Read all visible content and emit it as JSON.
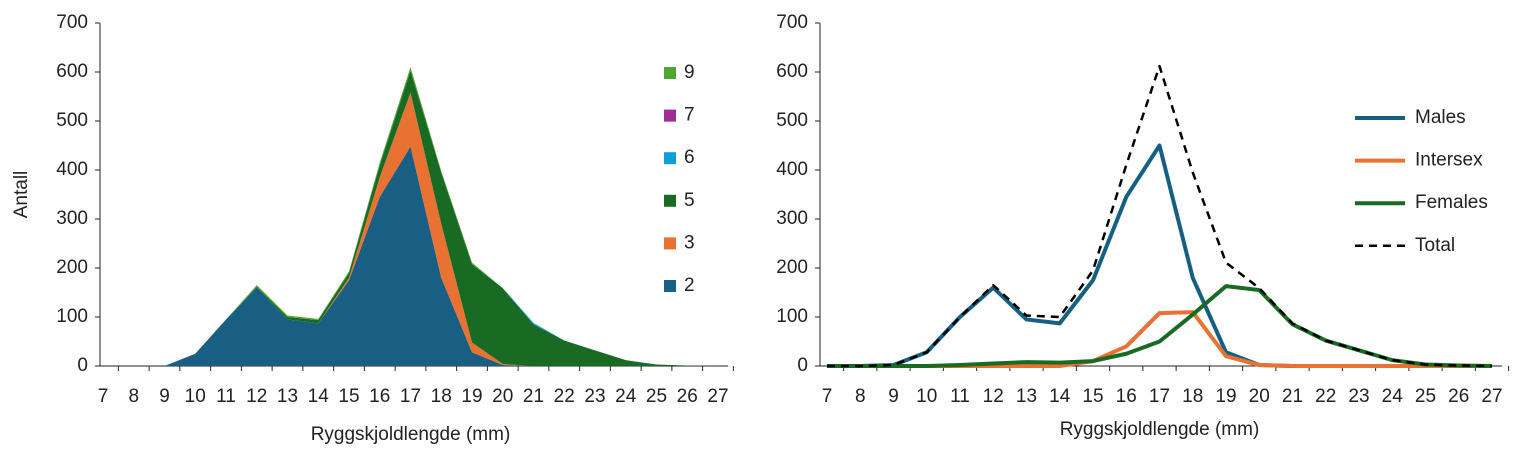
{
  "chart_data": [
    {
      "type": "area",
      "stacked": true,
      "x_label": "Ryggskjoldlengde (mm)",
      "y_label": "Antall",
      "categories": [
        "7",
        "8",
        "9",
        "10",
        "11",
        "12",
        "13",
        "14",
        "15",
        "16",
        "17",
        "18",
        "19",
        "20",
        "21",
        "22",
        "23",
        "24",
        "25",
        "26",
        "27"
      ],
      "ylim": [
        0,
        700
      ],
      "yticks": [
        0,
        100,
        200,
        300,
        400,
        500,
        600,
        700
      ],
      "series": [
        {
          "name": "2",
          "color": "#195e83",
          "values": [
            0,
            0,
            0,
            25,
            95,
            160,
            95,
            87,
            175,
            345,
            448,
            180,
            28,
            2,
            0,
            0,
            0,
            0,
            0,
            0,
            0
          ]
        },
        {
          "name": "3",
          "color": "#e97132",
          "values": [
            0,
            0,
            0,
            0,
            0,
            0,
            0,
            0,
            5,
            40,
            110,
            110,
            20,
            2,
            0,
            0,
            0,
            0,
            0,
            0,
            0
          ]
        },
        {
          "name": "5",
          "color": "#196b24",
          "values": [
            0,
            0,
            0,
            0,
            0,
            2,
            5,
            7,
            10,
            25,
            45,
            105,
            160,
            155,
            85,
            52,
            32,
            12,
            3,
            1,
            0
          ]
        },
        {
          "name": "6",
          "color": "#0f9ed5",
          "values": [
            0,
            0,
            0,
            0,
            0,
            0,
            0,
            0,
            0,
            0,
            0,
            0,
            0,
            0,
            3,
            0,
            0,
            0,
            0,
            0,
            0
          ]
        },
        {
          "name": "7",
          "color": "#a02b93",
          "values": [
            0,
            0,
            0,
            0,
            0,
            0,
            0,
            0,
            0,
            0,
            0,
            0,
            0,
            0,
            0,
            0,
            0,
            0,
            0,
            0,
            0
          ]
        },
        {
          "name": "9",
          "color": "#4ea72e",
          "values": [
            0,
            0,
            0,
            0,
            0,
            3,
            3,
            2,
            3,
            5,
            7,
            3,
            3,
            0,
            0,
            0,
            0,
            0,
            0,
            0,
            0
          ]
        }
      ]
    },
    {
      "type": "line",
      "x_label": "Ryggskjoldlengde (mm)",
      "categories": [
        "7",
        "8",
        "9",
        "10",
        "11",
        "12",
        "13",
        "14",
        "15",
        "16",
        "17",
        "18",
        "19",
        "20",
        "21",
        "22",
        "23",
        "24",
        "25",
        "26",
        "27"
      ],
      "ylim": [
        0,
        700
      ],
      "yticks": [
        0,
        100,
        200,
        300,
        400,
        500,
        600,
        700
      ],
      "series": [
        {
          "name": "Males",
          "color": "#156082",
          "values": [
            0,
            0,
            2,
            28,
            100,
            160,
            95,
            87,
            175,
            345,
            450,
            180,
            28,
            2,
            0,
            0,
            0,
            0,
            0,
            0,
            0
          ]
        },
        {
          "name": "Intersex",
          "color": "#e97132",
          "values": [
            0,
            0,
            0,
            0,
            0,
            0,
            0,
            0,
            10,
            40,
            108,
            110,
            20,
            2,
            0,
            0,
            0,
            0,
            0,
            0,
            0
          ]
        },
        {
          "name": "Females",
          "color": "#196b24",
          "values": [
            0,
            0,
            0,
            0,
            2,
            5,
            8,
            7,
            10,
            25,
            50,
            105,
            163,
            155,
            85,
            52,
            32,
            12,
            3,
            1,
            0
          ]
        },
        {
          "name": "Total",
          "color": "#000000",
          "dashed": true,
          "values": [
            0,
            0,
            2,
            28,
            100,
            165,
            103,
            100,
            195,
            410,
            612,
            395,
            211,
            159,
            87,
            52,
            32,
            12,
            3,
            1,
            0
          ]
        }
      ]
    }
  ]
}
